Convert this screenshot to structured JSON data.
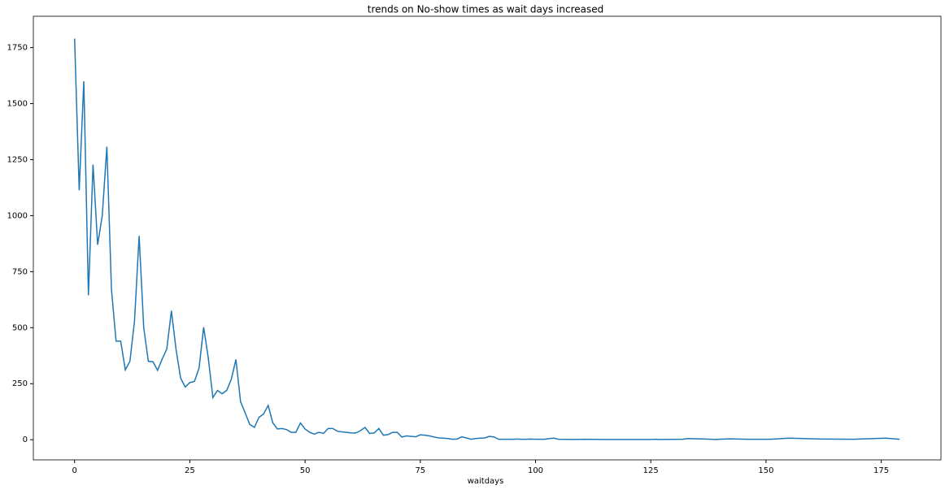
{
  "chart_data": {
    "type": "line",
    "title": "trends on No-show times as wait days increased",
    "x_label": "waitdays",
    "x": [
      0,
      1,
      2,
      3,
      4,
      5,
      6,
      7,
      8,
      9,
      10,
      11,
      12,
      13,
      14,
      15,
      16,
      17,
      18,
      19,
      20,
      21,
      22,
      23,
      24,
      25,
      26,
      27,
      28,
      29,
      30,
      31,
      32,
      33,
      34,
      35,
      36,
      37,
      38,
      39,
      40,
      41,
      42,
      43,
      44,
      45,
      46,
      47,
      48,
      49,
      50,
      51,
      52,
      53,
      54,
      55,
      56,
      57,
      58,
      59,
      60,
      61,
      62,
      63,
      64,
      65,
      66,
      67,
      68,
      69,
      70,
      71,
      72,
      73,
      74,
      75,
      76,
      77,
      78,
      79,
      80,
      81,
      82,
      83,
      84,
      85,
      86,
      87,
      88,
      89,
      90,
      91,
      92,
      93,
      94,
      95,
      96,
      97,
      98,
      99,
      100,
      101,
      102,
      103,
      104,
      105,
      108,
      111,
      115,
      120,
      125,
      126,
      127,
      132,
      133,
      137,
      139,
      142,
      146,
      151,
      155,
      162,
      169,
      176,
      179
    ],
    "series": [
      {
        "name": "no-show",
        "color": "#1f77b4",
        "values": [
          1790,
          1113,
          1600,
          645,
          1228,
          870,
          1000,
          1308,
          670,
          440,
          440,
          312,
          350,
          530,
          910,
          500,
          350,
          348,
          310,
          360,
          405,
          575,
          405,
          275,
          235,
          255,
          260,
          320,
          502,
          365,
          188,
          220,
          205,
          220,
          270,
          358,
          170,
          120,
          68,
          55,
          100,
          115,
          153,
          75,
          48,
          50,
          45,
          33,
          33,
          75,
          48,
          33,
          25,
          33,
          28,
          50,
          50,
          38,
          35,
          33,
          30,
          30,
          40,
          55,
          28,
          30,
          50,
          20,
          23,
          33,
          33,
          12,
          17,
          15,
          13,
          22,
          20,
          17,
          12,
          8,
          7,
          5,
          2,
          3,
          13,
          8,
          2,
          5,
          7,
          8,
          15,
          12,
          2,
          2,
          2,
          2,
          3,
          2,
          2,
          3,
          2,
          2,
          2,
          5,
          7,
          2,
          1,
          2,
          1,
          1,
          1,
          2,
          1,
          2,
          5,
          3,
          1,
          4,
          2,
          2,
          7,
          3,
          2,
          7,
          2
        ]
      }
    ],
    "xlim": [
      -8.95,
      187.95
    ],
    "ylim": [
      -90,
      1890
    ],
    "xticks": [
      0,
      25,
      50,
      75,
      100,
      125,
      150,
      175
    ],
    "yticks": [
      0,
      250,
      500,
      750,
      1000,
      1250,
      1500,
      1750
    ]
  }
}
